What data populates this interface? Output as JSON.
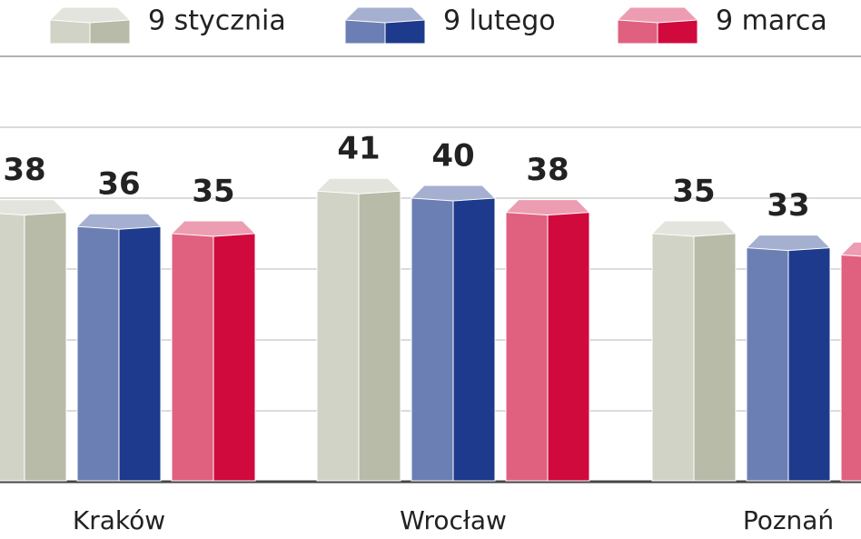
{
  "chart_data": {
    "type": "bar3d",
    "categories": [
      "Kraków",
      "Wrocław",
      "Poznań"
    ],
    "series": [
      {
        "name": "9 stycznia",
        "color": "#b9bba9",
        "values": [
          38,
          41,
          35
        ]
      },
      {
        "name": "9 lutego",
        "color": "#1d3a8c",
        "values": [
          36,
          40,
          33
        ]
      },
      {
        "name": "9 marca",
        "color": "#d00a3c",
        "values": [
          35,
          38,
          32
        ]
      }
    ],
    "ylim": [
      0,
      60
    ],
    "yticks": [
      0,
      10,
      20,
      30,
      40,
      50,
      60
    ],
    "grid": true
  }
}
